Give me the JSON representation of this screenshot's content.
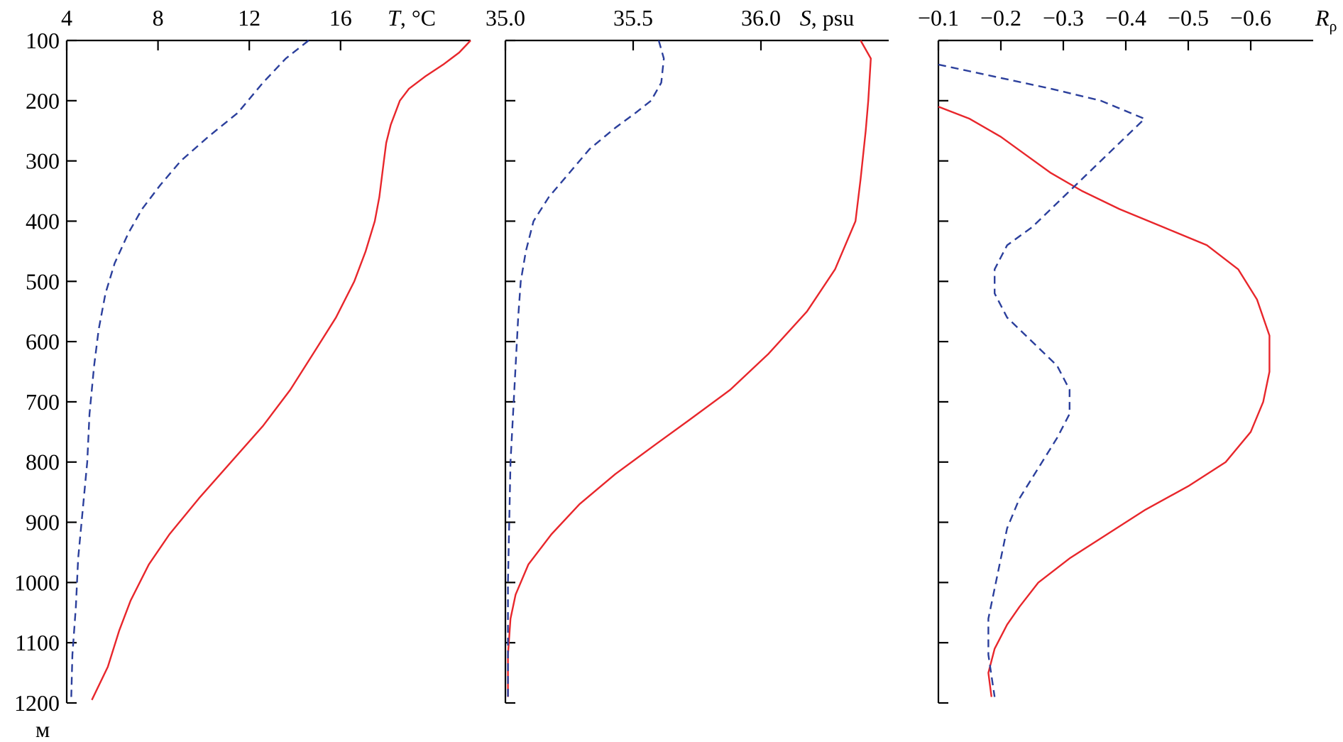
{
  "colors": {
    "red": "#e8262b",
    "blue": "#2b3f9c",
    "axis": "#000000"
  },
  "depth_axis": {
    "ticks": [
      "100",
      "200",
      "300",
      "400",
      "500",
      "600",
      "700",
      "800",
      "900",
      "1000",
      "1100",
      "1200"
    ],
    "unit": "м",
    "range": [
      100,
      1200
    ]
  },
  "chart_data": [
    {
      "type": "line",
      "panel": "temperature",
      "xlabel_var": "T",
      "xlabel_unit": ", °C",
      "xlim": [
        4,
        21.7
      ],
      "xtick_values": [
        4,
        8,
        12,
        16
      ],
      "xtick_labels": [
        "4",
        "8",
        "12",
        "16"
      ],
      "ylim": [
        100,
        1200
      ],
      "series": [
        {
          "style": "solid",
          "color": "red",
          "points": [
            [
              21.7,
              100
            ],
            [
              21.2,
              120
            ],
            [
              20.5,
              140
            ],
            [
              19.7,
              160
            ],
            [
              19.0,
              180
            ],
            [
              18.6,
              200
            ],
            [
              18.4,
              220
            ],
            [
              18.2,
              240
            ],
            [
              18.0,
              270
            ],
            [
              17.9,
              300
            ],
            [
              17.8,
              330
            ],
            [
              17.7,
              360
            ],
            [
              17.5,
              400
            ],
            [
              17.1,
              450
            ],
            [
              16.6,
              500
            ],
            [
              15.8,
              560
            ],
            [
              14.8,
              620
            ],
            [
              13.8,
              680
            ],
            [
              12.6,
              740
            ],
            [
              11.2,
              800
            ],
            [
              9.8,
              860
            ],
            [
              8.5,
              920
            ],
            [
              7.6,
              970
            ],
            [
              6.8,
              1030
            ],
            [
              6.3,
              1080
            ],
            [
              5.8,
              1140
            ],
            [
              5.1,
              1195
            ]
          ]
        },
        {
          "style": "dashed",
          "color": "blue",
          "points": [
            [
              14.6,
              100
            ],
            [
              13.6,
              130
            ],
            [
              12.6,
              170
            ],
            [
              11.5,
              220
            ],
            [
              10.2,
              260
            ],
            [
              9.0,
              300
            ],
            [
              8.1,
              340
            ],
            [
              7.3,
              380
            ],
            [
              6.7,
              420
            ],
            [
              6.1,
              470
            ],
            [
              5.7,
              520
            ],
            [
              5.4,
              580
            ],
            [
              5.2,
              640
            ],
            [
              5.0,
              720
            ],
            [
              4.9,
              800
            ],
            [
              4.7,
              880
            ],
            [
              4.5,
              960
            ],
            [
              4.4,
              1040
            ],
            [
              4.25,
              1120
            ],
            [
              4.2,
              1190
            ]
          ]
        }
      ]
    },
    {
      "type": "line",
      "panel": "salinity",
      "xlabel_var": "S",
      "xlabel_unit": ", psu",
      "xlim": [
        35.0,
        36.5
      ],
      "xtick_values": [
        35.0,
        35.5,
        36.0
      ],
      "xtick_labels": [
        "35.0",
        "35.5",
        "36.0"
      ],
      "ylim": [
        100,
        1200
      ],
      "series": [
        {
          "style": "solid",
          "color": "red",
          "points": [
            [
              36.39,
              100
            ],
            [
              36.43,
              130
            ],
            [
              36.42,
              200
            ],
            [
              36.41,
              250
            ],
            [
              36.39,
              330
            ],
            [
              36.37,
              400
            ],
            [
              36.29,
              480
            ],
            [
              36.18,
              550
            ],
            [
              36.03,
              620
            ],
            [
              35.88,
              680
            ],
            [
              35.72,
              730
            ],
            [
              35.59,
              770
            ],
            [
              35.43,
              820
            ],
            [
              35.29,
              870
            ],
            [
              35.18,
              920
            ],
            [
              35.09,
              970
            ],
            [
              35.04,
              1020
            ],
            [
              35.02,
              1060
            ],
            [
              35.01,
              1120
            ],
            [
              35.01,
              1190
            ]
          ]
        },
        {
          "style": "dashed",
          "color": "blue",
          "points": [
            [
              35.6,
              100
            ],
            [
              35.62,
              130
            ],
            [
              35.61,
              170
            ],
            [
              35.57,
              200
            ],
            [
              35.51,
              220
            ],
            [
              35.43,
              245
            ],
            [
              35.33,
              280
            ],
            [
              35.25,
              320
            ],
            [
              35.17,
              360
            ],
            [
              35.11,
              400
            ],
            [
              35.08,
              450
            ],
            [
              35.06,
              500
            ],
            [
              35.05,
              560
            ],
            [
              35.04,
              640
            ],
            [
              35.03,
              720
            ],
            [
              35.02,
              800
            ],
            [
              35.015,
              900
            ],
            [
              35.01,
              1000
            ],
            [
              35.01,
              1100
            ],
            [
              35.01,
              1190
            ]
          ]
        }
      ]
    },
    {
      "type": "line",
      "panel": "density_ratio",
      "xlabel_var": "R",
      "xlabel_sub": "ρ",
      "xlim": [
        -0.1,
        -0.7
      ],
      "xtick_values": [
        -0.1,
        -0.2,
        -0.3,
        -0.4,
        -0.5,
        -0.6
      ],
      "xtick_labels": [
        "−0.1",
        "−0.2",
        "−0.3",
        "−0.4",
        "−0.5",
        "−0.6"
      ],
      "ylim": [
        100,
        1200
      ],
      "series": [
        {
          "style": "solid",
          "color": "red",
          "points": [
            [
              -0.1,
              210
            ],
            [
              -0.15,
              230
            ],
            [
              -0.2,
              260
            ],
            [
              -0.24,
              290
            ],
            [
              -0.28,
              320
            ],
            [
              -0.33,
              350
            ],
            [
              -0.39,
              380
            ],
            [
              -0.46,
              410
            ],
            [
              -0.53,
              440
            ],
            [
              -0.58,
              480
            ],
            [
              -0.61,
              530
            ],
            [
              -0.63,
              590
            ],
            [
              -0.63,
              650
            ],
            [
              -0.62,
              700
            ],
            [
              -0.6,
              750
            ],
            [
              -0.56,
              800
            ],
            [
              -0.5,
              840
            ],
            [
              -0.43,
              880
            ],
            [
              -0.37,
              920
            ],
            [
              -0.31,
              960
            ],
            [
              -0.26,
              1000
            ],
            [
              -0.23,
              1040
            ],
            [
              -0.21,
              1070
            ],
            [
              -0.19,
              1110
            ],
            [
              -0.18,
              1150
            ],
            [
              -0.185,
              1190
            ]
          ]
        },
        {
          "style": "dashed",
          "color": "blue",
          "points": [
            [
              -0.1,
              140
            ],
            [
              -0.19,
              160
            ],
            [
              -0.28,
              180
            ],
            [
              -0.36,
              200
            ],
            [
              -0.43,
              230
            ],
            [
              -0.39,
              270
            ],
            [
              -0.34,
              320
            ],
            [
              -0.29,
              370
            ],
            [
              -0.25,
              410
            ],
            [
              -0.21,
              440
            ],
            [
              -0.19,
              480
            ],
            [
              -0.19,
              520
            ],
            [
              -0.21,
              560
            ],
            [
              -0.25,
              600
            ],
            [
              -0.29,
              640
            ],
            [
              -0.31,
              680
            ],
            [
              -0.31,
              720
            ],
            [
              -0.29,
              760
            ],
            [
              -0.26,
              810
            ],
            [
              -0.23,
              860
            ],
            [
              -0.21,
              910
            ],
            [
              -0.2,
              960
            ],
            [
              -0.19,
              1010
            ],
            [
              -0.18,
              1060
            ],
            [
              -0.18,
              1120
            ],
            [
              -0.19,
              1190
            ]
          ]
        }
      ]
    }
  ]
}
